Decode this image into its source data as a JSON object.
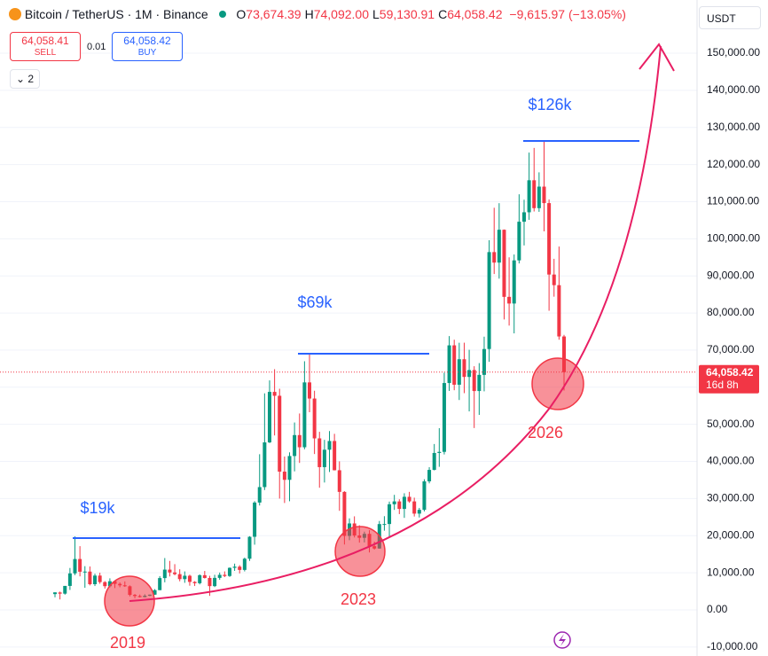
{
  "header": {
    "symbol": "Bitcoin / TetherUS · 1M · Binance",
    "fields": [
      {
        "key": "O",
        "value": "73,674.39"
      },
      {
        "key": "H",
        "value": "74,092.00"
      },
      {
        "key": "L",
        "value": "59,130.91"
      },
      {
        "key": "C",
        "value": "64,058.42"
      }
    ],
    "change": "−9,615.97 (−13.05%)"
  },
  "trade": {
    "sell_price": "64,058.41",
    "sell": "SELL",
    "quantity": "0.01",
    "buy_price": "64,058.42",
    "buy": "BUY",
    "indicators": "2",
    "currency": "USDT"
  },
  "chart_data": {
    "type": "candlestick",
    "up_color": "#089981",
    "down_color": "#f23645",
    "ylim": [
      -12420,
      164330
    ],
    "yticks": [
      {
        "value": -10000,
        "label": "-10,000.00"
      },
      {
        "value": 0,
        "label": "0.00"
      },
      {
        "value": 10000,
        "label": "10,000.00"
      },
      {
        "value": 20000,
        "label": "20,000.00"
      },
      {
        "value": 30000,
        "label": "30,000.00"
      },
      {
        "value": 40000,
        "label": "40,000.00"
      },
      {
        "value": 50000,
        "label": "50,000.00"
      },
      {
        "value": 60000,
        "label": "60,000.00"
      },
      {
        "value": 70000,
        "label": "70,000.00"
      },
      {
        "value": 80000,
        "label": "80,000.00"
      },
      {
        "value": 90000,
        "label": "90,000.00"
      },
      {
        "value": 100000,
        "label": "100,000.00"
      },
      {
        "value": 110000,
        "label": "110,000.00"
      },
      {
        "value": 120000,
        "label": "120,000.00"
      },
      {
        "value": 130000,
        "label": "130,000.00"
      },
      {
        "value": 140000,
        "label": "140,000.00"
      },
      {
        "value": 150000,
        "label": "150,000.00"
      }
    ],
    "ohlc": [
      [
        4261,
        4745,
        3400,
        4724
      ],
      [
        4689,
        4939,
        2817,
        4378
      ],
      [
        4378,
        6470,
        4110,
        6463
      ],
      [
        6463,
        11300,
        5380,
        9838
      ],
      [
        9838,
        19798,
        9380,
        13716
      ],
      [
        13716,
        17176,
        9035,
        10285
      ],
      [
        10285,
        11786,
        5968,
        10326
      ],
      [
        10326,
        11700,
        6600,
        6923
      ],
      [
        6923,
        9760,
        6430,
        9246
      ],
      [
        9246,
        10020,
        7035,
        7494
      ],
      [
        7494,
        7750,
        5750,
        6391
      ],
      [
        6391,
        8507,
        6070,
        7730
      ],
      [
        7730,
        7770,
        5880,
        7011
      ],
      [
        7011,
        7410,
        6100,
        6626
      ],
      [
        6626,
        7680,
        6200,
        6371
      ],
      [
        6371,
        6600,
        3652,
        4041
      ],
      [
        4041,
        4300,
        3156,
        3742
      ],
      [
        3742,
        4140,
        3350,
        3458
      ],
      [
        3458,
        4200,
        3400,
        3814
      ],
      [
        3814,
        4140,
        3700,
        4103
      ],
      [
        4103,
        5600,
        4050,
        5321
      ],
      [
        5321,
        9100,
        5320,
        8574
      ],
      [
        8574,
        13970,
        7440,
        10855
      ],
      [
        10855,
        13200,
        9010,
        10085
      ],
      [
        10085,
        12330,
        9320,
        9630
      ],
      [
        9630,
        10950,
        7710,
        8293
      ],
      [
        8293,
        10370,
        7300,
        9199
      ],
      [
        9199,
        9500,
        6520,
        7546
      ],
      [
        7546,
        7750,
        6435,
        7195
      ],
      [
        7195,
        9578,
        6871,
        9352
      ],
      [
        9352,
        10500,
        8450,
        8600
      ],
      [
        8600,
        9188,
        3782,
        6410
      ],
      [
        6410,
        9468,
        6150,
        8625
      ],
      [
        8625,
        10067,
        8117,
        9448
      ],
      [
        9448,
        10380,
        8833,
        9138
      ],
      [
        9138,
        11444,
        8893,
        11335
      ],
      [
        11335,
        12468,
        10518,
        11650
      ],
      [
        11650,
        12050,
        9825,
        10776
      ],
      [
        10776,
        14100,
        10374,
        13791
      ],
      [
        13791,
        19863,
        13195,
        19700
      ],
      [
        19700,
        29300,
        17570,
        28923
      ],
      [
        28923,
        41950,
        28130,
        33092
      ],
      [
        33092,
        58352,
        32296,
        45135
      ],
      [
        45135,
        61844,
        44950,
        58741
      ],
      [
        58741,
        64854,
        47000,
        57694
      ],
      [
        57694,
        59592,
        30000,
        37253
      ],
      [
        37253,
        41330,
        28805,
        35045
      ],
      [
        35045,
        42448,
        29278,
        41462
      ],
      [
        41462,
        50500,
        37332,
        47101
      ],
      [
        47101,
        52920,
        39600,
        43824
      ],
      [
        43824,
        67000,
        43283,
        61300
      ],
      [
        61300,
        69000,
        53256,
        56950
      ],
      [
        56950,
        59053,
        42000,
        46217
      ],
      [
        46217,
        47990,
        32917,
        38466
      ],
      [
        38466,
        45821,
        34322,
        43160
      ],
      [
        43160,
        48190,
        37155,
        45511
      ],
      [
        45511,
        47444,
        37578,
        37630
      ],
      [
        37630,
        40023,
        26700,
        31801
      ],
      [
        31801,
        31986,
        17622,
        19942
      ],
      [
        19942,
        24668,
        18782,
        23293
      ],
      [
        23293,
        25212,
        19520,
        20050
      ],
      [
        20050,
        22800,
        18125,
        19423
      ],
      [
        19423,
        21085,
        18190,
        20491
      ],
      [
        20491,
        21480,
        15476,
        17164
      ],
      [
        17164,
        18387,
        16257,
        16542
      ],
      [
        16542,
        23960,
        16500,
        23125
      ],
      [
        23125,
        25250,
        21351,
        23142
      ],
      [
        23142,
        29184,
        19549,
        28465
      ],
      [
        28465,
        31000,
        26942,
        29233
      ],
      [
        29233,
        29820,
        25811,
        27210
      ],
      [
        27210,
        31431,
        24800,
        30472
      ],
      [
        30472,
        31804,
        28861,
        29232
      ],
      [
        29232,
        30244,
        25166,
        25941
      ],
      [
        25941,
        27483,
        24901,
        26962
      ],
      [
        26962,
        35198,
        26538,
        34640
      ],
      [
        34640,
        38450,
        34097,
        37723
      ],
      [
        37723,
        44700,
        37600,
        42284
      ],
      [
        42284,
        48969,
        38555,
        42580
      ],
      [
        42580,
        63913,
        41884,
        61130
      ],
      [
        61130,
        73777,
        59005,
        71280
      ],
      [
        71280,
        72797,
        59191,
        60672
      ],
      [
        60672,
        71979,
        56552,
        67540
      ],
      [
        67540,
        71997,
        58402,
        62772
      ],
      [
        62772,
        70079,
        53485,
        64628
      ],
      [
        64628,
        65659,
        49000,
        58974
      ],
      [
        58974,
        66498,
        52550,
        63327
      ],
      [
        63327,
        73620,
        58895,
        70292
      ],
      [
        70292,
        99588,
        66835,
        96407
      ],
      [
        96407,
        108353,
        90500,
        93576
      ],
      [
        93576,
        109588,
        89256,
        102429
      ],
      [
        102429,
        102500,
        78258,
        84350
      ],
      [
        84350,
        95000,
        76606,
        82550
      ],
      [
        82550,
        95758,
        74508,
        94172
      ],
      [
        94172,
        111980,
        93346,
        104591
      ],
      [
        104591,
        110530,
        98200,
        107136
      ],
      [
        107136,
        123218,
        105100,
        115764
      ],
      [
        115764,
        124474,
        107350,
        108246
      ],
      [
        108246,
        117900,
        107255,
        114049
      ],
      [
        114049,
        126199,
        102000,
        109608
      ],
      [
        109608,
        110600,
        80600,
        90360
      ],
      [
        90360,
        94600,
        84400,
        87500
      ],
      [
        87500,
        97900,
        72800,
        73674.39
      ],
      [
        73674.39,
        74092,
        59130.91,
        64058.42
      ]
    ],
    "last_price": {
      "value": 64058.42,
      "label": "64,058.42",
      "countdown": "16d 8h"
    },
    "levels": [
      {
        "label": "$19k",
        "value": 19350
      },
      {
        "label": "$69k",
        "value": 69030
      },
      {
        "label": "$126k",
        "value": 126350
      }
    ],
    "annotations": [
      "2019",
      "2023",
      "2026"
    ]
  }
}
